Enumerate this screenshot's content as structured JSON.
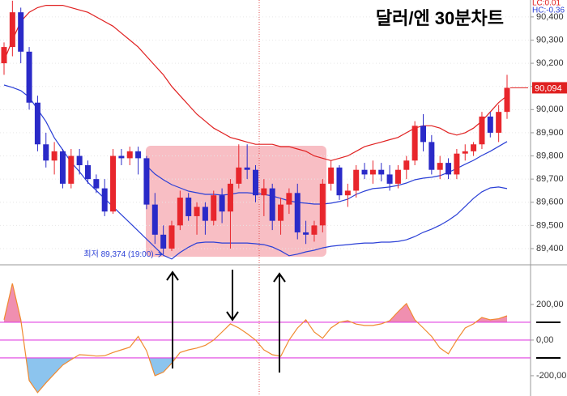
{
  "chart_data": [
    {
      "type": "candlestick",
      "title": "달러/엔 30분차트",
      "indicator_labels": [
        "LC:0.01",
        "HC:-0.36"
      ],
      "up_color": "#e8262c",
      "down_color": "#2a2ac8",
      "open": [
        90200,
        90270,
        90420,
        90250,
        90030,
        89850,
        89780,
        89820,
        89680,
        89800,
        89760,
        89700,
        89660,
        89560,
        89800,
        89790,
        89820,
        89790,
        89590,
        89460,
        89400,
        89500,
        89620,
        89540,
        89580,
        89520,
        89630,
        89560,
        89680,
        89750,
        89740,
        89630,
        89660,
        89520,
        89590,
        89640,
        89470,
        89460,
        89500,
        89680,
        89750,
        89630,
        89650,
        89740,
        89720,
        89740,
        89720,
        89680,
        89740,
        89780,
        89930,
        89860,
        89740,
        89770,
        89720,
        89810,
        89820,
        89850,
        89970,
        89900,
        89990
      ],
      "high": [
        90290,
        90470,
        90440,
        90270,
        90060,
        89900,
        89860,
        89830,
        89830,
        89830,
        89780,
        89720,
        89700,
        89830,
        89830,
        89840,
        89840,
        89800,
        89640,
        89500,
        89520,
        89650,
        89640,
        89600,
        89600,
        89650,
        89660,
        89700,
        89850,
        89850,
        89760,
        89700,
        89680,
        89620,
        89660,
        89680,
        89520,
        89520,
        89700,
        89780,
        89760,
        89680,
        89760,
        89770,
        89780,
        89770,
        89760,
        89760,
        89800,
        89950,
        89980,
        89890,
        89800,
        89790,
        89830,
        89850,
        89860,
        89990,
        89990,
        90020,
        90150
      ],
      "low": [
        90150,
        90230,
        90200,
        90000,
        89820,
        89750,
        89720,
        89660,
        89660,
        89720,
        89680,
        89640,
        89540,
        89550,
        89760,
        89760,
        89720,
        89570,
        89420,
        89374,
        89390,
        89480,
        89520,
        89460,
        89460,
        89500,
        89510,
        89400,
        89660,
        89700,
        89600,
        89540,
        89480,
        89460,
        89550,
        89440,
        89420,
        89430,
        89470,
        89650,
        89610,
        89580,
        89620,
        89700,
        89680,
        89690,
        89650,
        89660,
        89700,
        89760,
        89820,
        89720,
        89700,
        89700,
        89700,
        89780,
        89800,
        89830,
        89880,
        89860,
        89960
      ],
      "close": [
        90270,
        90420,
        90250,
        90030,
        89850,
        89780,
        89820,
        89680,
        89800,
        89760,
        89700,
        89660,
        89560,
        89800,
        89790,
        89820,
        89790,
        89590,
        89460,
        89400,
        89500,
        89620,
        89540,
        89580,
        89520,
        89630,
        89560,
        89680,
        89750,
        89740,
        89630,
        89660,
        89520,
        89590,
        89640,
        89470,
        89460,
        89500,
        89680,
        89750,
        89630,
        89650,
        89740,
        89720,
        89740,
        89720,
        89680,
        89740,
        89780,
        89930,
        89860,
        89740,
        89770,
        89720,
        89810,
        89820,
        89850,
        89970,
        89900,
        89990,
        90094
      ],
      "bands": [
        {
          "color": "#e02020",
          "values": [
            90210,
            90300,
            90380,
            90420,
            90440,
            90450,
            90450,
            90450,
            90440,
            90430,
            90420,
            90400,
            90380,
            90360,
            90330,
            90300,
            90270,
            90230,
            90190,
            90150,
            90100,
            90060,
            90020,
            89980,
            89950,
            89920,
            89900,
            89880,
            89870,
            89860,
            89850,
            89850,
            89850,
            89840,
            89840,
            89830,
            89820,
            89800,
            89790,
            89780,
            89790,
            89800,
            89820,
            89840,
            89850,
            89860,
            89870,
            89880,
            89900,
            89920,
            89930,
            89930,
            89920,
            89900,
            89890,
            89900,
            89920,
            89950,
            89990,
            90030,
            90060
          ]
        },
        {
          "color": "#2a3fd6",
          "values": [
            null,
            null,
            null,
            null,
            null,
            null,
            null,
            null,
            null,
            null,
            null,
            null,
            null,
            null,
            null,
            null,
            null,
            89757,
            89722,
            89697,
            89676,
            89662,
            89648,
            89641,
            89634,
            89634,
            89631,
            89634,
            89641,
            89641,
            89638,
            89634,
            89627,
            89617,
            89606,
            89599,
            89596,
            89592,
            89592,
            89596,
            89603,
            89613,
            89634,
            89648,
            89659,
            89662,
            89666,
            89673,
            89683,
            89697,
            89704,
            89708,
            89715,
            89729,
            89746,
            89764,
            89781,
            89802,
            89820,
            89841,
            89862
          ]
        },
        {
          "color": "#2a3fd6",
          "values": [
            90106,
            90096,
            90082,
            90054,
            90001,
            89948,
            89878,
            89826,
            89773,
            89732,
            89686,
            89651,
            89616,
            89581,
            89546,
            89511,
            89476,
            89441,
            89406,
            89371,
            89355,
            89383,
            89406,
            89424,
            89428,
            89428,
            89424,
            89424,
            89424,
            89424,
            89421,
            89417,
            89407,
            89390,
            89369,
            89376,
            89386,
            89393,
            89403,
            89410,
            89414,
            89417,
            89421,
            89424,
            89424,
            89428,
            89428,
            89431,
            89438,
            89452,
            89470,
            89484,
            89501,
            89522,
            89547,
            89582,
            89617,
            89645,
            89662,
            89666,
            89659
          ]
        }
      ],
      "current_price": {
        "value": 90094,
        "label": "90,094"
      },
      "low_annotation": "최저 89,374 (19:00)",
      "low_index": 19,
      "ylim": [
        89330,
        90473
      ],
      "yticks": [
        {
          "value": 90400,
          "label": "90,400"
        },
        {
          "value": 90300,
          "label": "90,300"
        },
        {
          "value": 90200,
          "label": "90,200"
        },
        {
          "value": 90100,
          "label": "90,100"
        },
        {
          "value": 90000,
          "label": "90,000"
        },
        {
          "value": 89900,
          "label": "89,900"
        },
        {
          "value": 89800,
          "label": "89,800"
        },
        {
          "value": 89700,
          "label": "89,700"
        },
        {
          "value": 89600,
          "label": "89,600"
        },
        {
          "value": 89500,
          "label": "89,500"
        },
        {
          "value": 89400,
          "label": "89,400"
        }
      ],
      "grid": true
    },
    {
      "type": "line",
      "color": "#f08a30",
      "high_fill": "#f08fb0",
      "low_fill": "#8cc4ee",
      "level_color": "#e040e0",
      "levels": [
        100,
        0,
        -100
      ],
      "values": [
        114,
        318,
        114,
        -227,
        -295,
        -240,
        -190,
        -140,
        -110,
        -82,
        -85,
        -90,
        -88,
        -70,
        -55,
        -40,
        20,
        -60,
        -200,
        -180,
        -130,
        -70,
        -55,
        -45,
        -30,
        0,
        45,
        91,
        68,
        36,
        0,
        -55,
        -82,
        -91,
        0,
        68,
        114,
        45,
        10,
        68,
        100,
        109,
        90,
        82,
        82,
        91,
        109,
        159,
        205,
        114,
        68,
        20,
        -45,
        -77,
        0,
        68,
        91,
        127,
        114,
        120,
        136
      ],
      "ylim": [
        -314,
        409
      ],
      "yticks": [
        {
          "value": 200,
          "label": "200,00"
        },
        {
          "value": 0,
          "label": "0,00"
        },
        {
          "value": -200,
          "label": "-200,00"
        }
      ]
    }
  ]
}
